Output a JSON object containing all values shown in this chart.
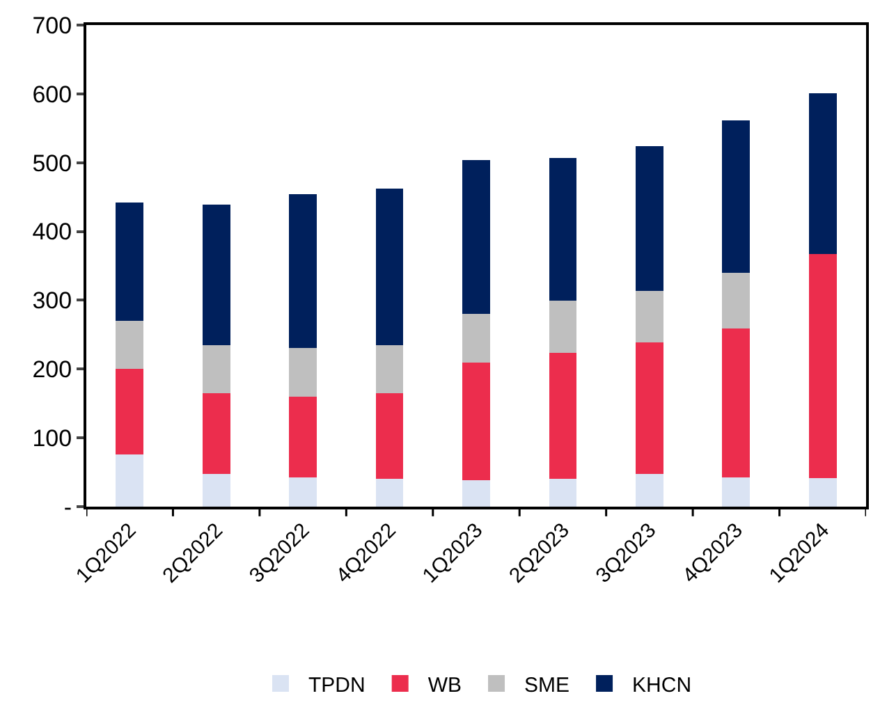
{
  "chart_data": {
    "type": "bar",
    "stacked": true,
    "categories": [
      "1Q2022",
      "2Q2022",
      "3Q2022",
      "4Q2022",
      "1Q2023",
      "2Q2023",
      "3Q2023",
      "4Q2023",
      "1Q2024"
    ],
    "series": [
      {
        "name": "TPDN",
        "color": "#dae3f3",
        "values": [
          76,
          48,
          43,
          40,
          38,
          40,
          48,
          43,
          41
        ]
      },
      {
        "name": "WB",
        "color": "#ec2d4d",
        "values": [
          124,
          117,
          117,
          125,
          171,
          184,
          191,
          216,
          326
        ]
      },
      {
        "name": "SME",
        "color": "#bfbfbf",
        "values": [
          70,
          70,
          71,
          70,
          71,
          75,
          75,
          81,
          0
        ]
      },
      {
        "name": "KHCN",
        "color": "#00205c",
        "values": [
          172,
          204,
          223,
          227,
          224,
          208,
          210,
          221,
          234
        ]
      }
    ],
    "ylim": [
      0,
      700
    ],
    "yticks": [
      {
        "value": 0,
        "label": "-"
      },
      100,
      200,
      300,
      400,
      500,
      600,
      700
    ],
    "grid": false,
    "legend": "bottom"
  }
}
